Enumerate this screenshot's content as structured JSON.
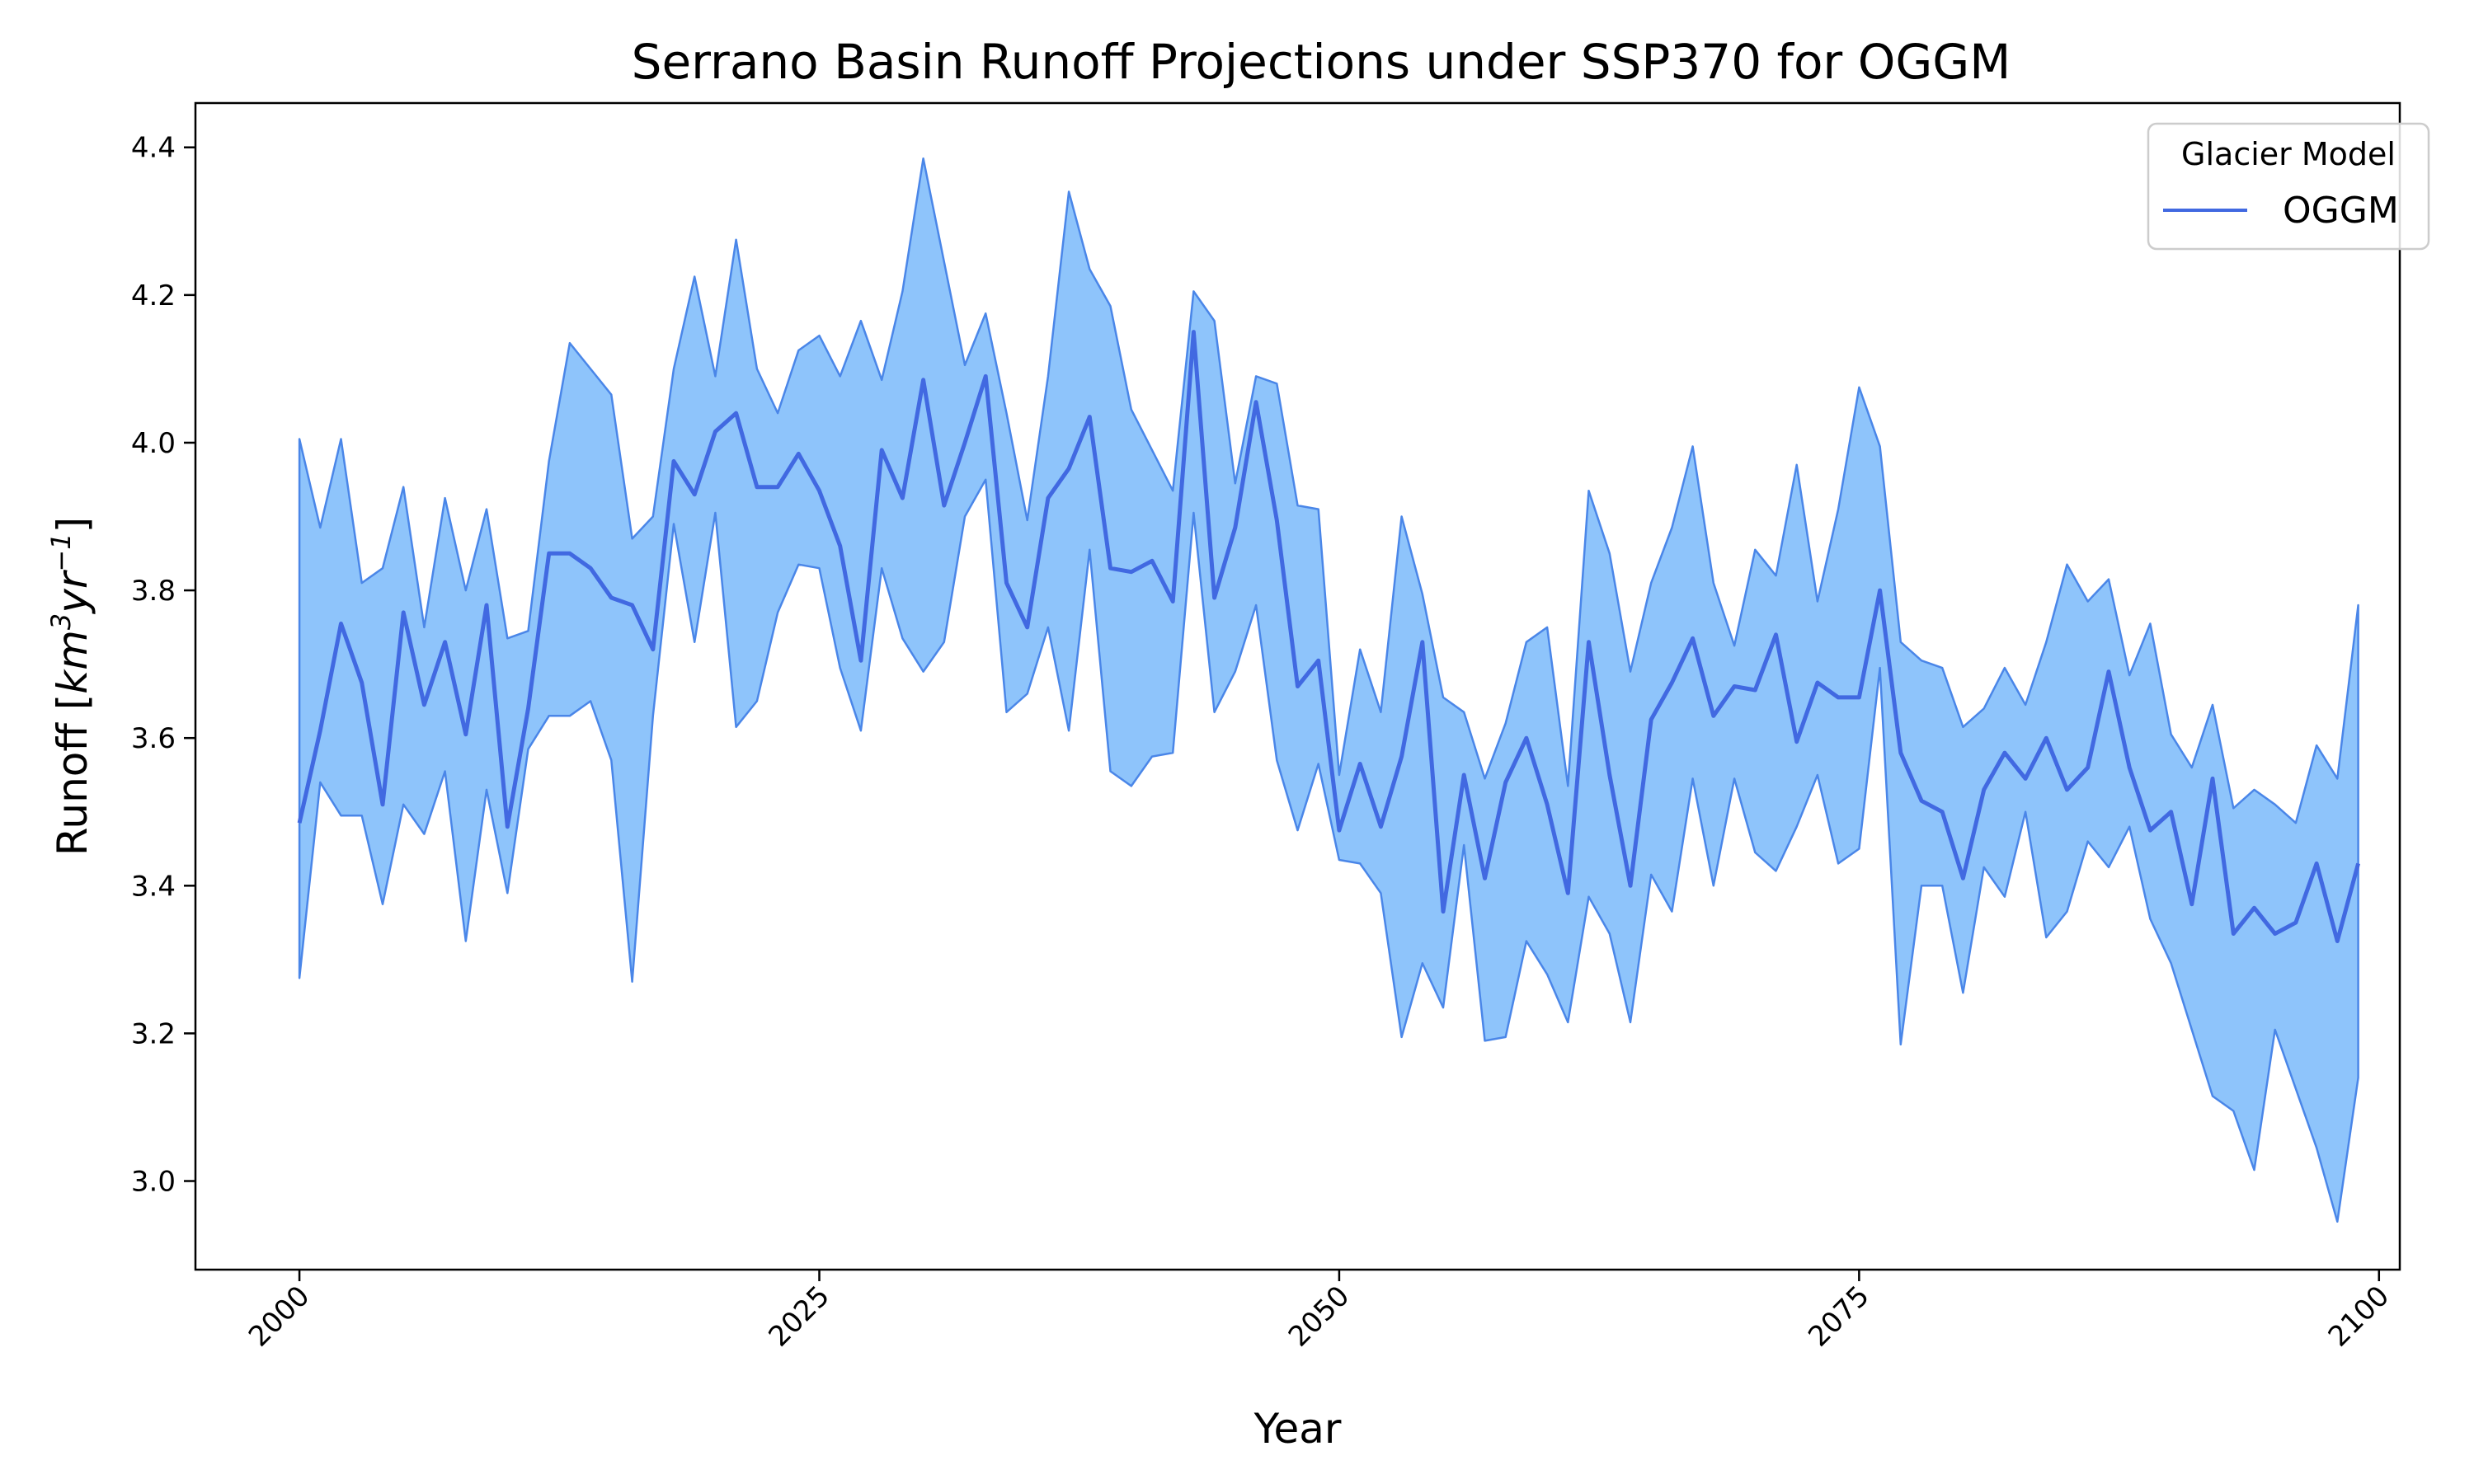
{
  "chart_data": {
    "type": "line",
    "title": "Serrano Basin Runoff Projections under SSP370 for OGGM",
    "xlabel": "Year",
    "ylabel_main": "Runoff [",
    "ylabel_km": "km",
    "ylabel_km_exp": "3",
    "ylabel_yr": "yr",
    "ylabel_yr_exp": "−1",
    "ylabel_close": "]",
    "xlim": [
      1995,
      2101
    ],
    "ylim": [
      2.88,
      4.46
    ],
    "xticks": [
      2000,
      2025,
      2050,
      2075,
      2100
    ],
    "yticks": [
      3.0,
      3.2,
      3.4,
      3.6,
      3.8,
      4.0,
      4.2,
      4.4
    ],
    "ytick_labels": [
      "3.0",
      "3.2",
      "3.4",
      "3.6",
      "3.8",
      "4.0",
      "4.2",
      "4.4"
    ],
    "legend": {
      "title": "Glacier Model",
      "placement": "upper right"
    },
    "colors": {
      "line": "#4169e1",
      "band_fill": "#8ec4fb",
      "band_edge": "#4a86e8"
    },
    "x": [
      2000,
      2001,
      2002,
      2003,
      2004,
      2005,
      2006,
      2007,
      2008,
      2009,
      2010,
      2011,
      2012,
      2013,
      2014,
      2015,
      2016,
      2017,
      2018,
      2019,
      2020,
      2021,
      2022,
      2023,
      2024,
      2025,
      2026,
      2027,
      2028,
      2029,
      2030,
      2031,
      2032,
      2033,
      2034,
      2035,
      2036,
      2037,
      2038,
      2039,
      2040,
      2041,
      2042,
      2043,
      2044,
      2045,
      2046,
      2047,
      2048,
      2049,
      2050,
      2051,
      2052,
      2053,
      2054,
      2055,
      2056,
      2057,
      2058,
      2059,
      2060,
      2061,
      2062,
      2063,
      2064,
      2065,
      2066,
      2067,
      2068,
      2069,
      2070,
      2071,
      2072,
      2073,
      2074,
      2075,
      2076,
      2077,
      2078,
      2079,
      2080,
      2081,
      2082,
      2083,
      2084,
      2085,
      2086,
      2087,
      2088,
      2089,
      2090,
      2091,
      2092,
      2093,
      2094,
      2095,
      2096,
      2097,
      2098,
      2099
    ],
    "series": [
      {
        "name": "OGGM",
        "mean": [
          3.485,
          3.61,
          3.755,
          3.675,
          3.51,
          3.77,
          3.645,
          3.73,
          3.605,
          3.78,
          3.48,
          3.64,
          3.85,
          3.85,
          3.83,
          3.79,
          3.78,
          3.72,
          3.975,
          3.93,
          4.015,
          4.04,
          3.94,
          3.94,
          3.985,
          3.935,
          3.86,
          3.705,
          3.99,
          3.925,
          4.085,
          3.915,
          4.0,
          4.09,
          3.81,
          3.75,
          3.925,
          3.965,
          4.035,
          3.83,
          3.825,
          3.84,
          3.785,
          4.15,
          3.79,
          3.885,
          4.055,
          3.895,
          3.67,
          3.705,
          3.475,
          3.565,
          3.48,
          3.575,
          3.73,
          3.365,
          3.55,
          3.41,
          3.54,
          3.6,
          3.51,
          3.39,
          3.73,
          3.55,
          3.4,
          3.625,
          3.675,
          3.735,
          3.63,
          3.67,
          3.665,
          3.74,
          3.595,
          3.675,
          3.655,
          3.655,
          3.8,
          3.58,
          3.515,
          3.5,
          3.41,
          3.53,
          3.58,
          3.545,
          3.6,
          3.53,
          3.56,
          3.69,
          3.56,
          3.475,
          3.5,
          3.375,
          3.545,
          3.335,
          3.37,
          3.335,
          3.35,
          3.43,
          3.325,
          3.43
        ],
        "upper": [
          4.005,
          3.885,
          4.005,
          3.81,
          3.83,
          3.94,
          3.75,
          3.925,
          3.8,
          3.91,
          3.735,
          3.745,
          3.975,
          4.135,
          4.1,
          4.065,
          3.87,
          3.9,
          4.1,
          4.225,
          4.09,
          4.275,
          4.1,
          4.04,
          4.125,
          4.145,
          4.09,
          4.165,
          4.085,
          4.205,
          4.385,
          4.245,
          4.105,
          4.175,
          4.04,
          3.895,
          4.09,
          4.34,
          4.235,
          4.185,
          4.045,
          3.99,
          3.935,
          4.205,
          4.165,
          3.945,
          4.09,
          4.08,
          3.915,
          3.91,
          3.55,
          3.72,
          3.635,
          3.9,
          3.795,
          3.655,
          3.635,
          3.545,
          3.62,
          3.73,
          3.75,
          3.535,
          3.935,
          3.85,
          3.69,
          3.81,
          3.885,
          3.995,
          3.81,
          3.725,
          3.855,
          3.82,
          3.97,
          3.785,
          3.91,
          4.075,
          3.995,
          3.73,
          3.705,
          3.695,
          3.615,
          3.64,
          3.695,
          3.645,
          3.73,
          3.835,
          3.785,
          3.815,
          3.685,
          3.755,
          3.605,
          3.56,
          3.645,
          3.505,
          3.53,
          3.51,
          3.485,
          3.59,
          3.545,
          3.78
        ],
        "lower": [
          3.275,
          3.54,
          3.495,
          3.495,
          3.375,
          3.51,
          3.47,
          3.555,
          3.325,
          3.53,
          3.39,
          3.585,
          3.63,
          3.63,
          3.65,
          3.57,
          3.27,
          3.63,
          3.89,
          3.73,
          3.905,
          3.615,
          3.65,
          3.77,
          3.835,
          3.83,
          3.695,
          3.61,
          3.83,
          3.735,
          3.69,
          3.73,
          3.9,
          3.95,
          3.635,
          3.66,
          3.75,
          3.61,
          3.855,
          3.555,
          3.535,
          3.575,
          3.58,
          3.905,
          3.635,
          3.69,
          3.78,
          3.57,
          3.475,
          3.565,
          3.435,
          3.43,
          3.39,
          3.195,
          3.295,
          3.235,
          3.455,
          3.19,
          3.195,
          3.325,
          3.28,
          3.215,
          3.385,
          3.335,
          3.215,
          3.415,
          3.365,
          3.545,
          3.4,
          3.545,
          3.445,
          3.42,
          3.48,
          3.55,
          3.43,
          3.45,
          3.695,
          3.185,
          3.4,
          3.4,
          3.255,
          3.425,
          3.385,
          3.5,
          3.33,
          3.365,
          3.46,
          3.425,
          3.48,
          3.355,
          3.295,
          3.205,
          3.115,
          3.095,
          3.015,
          3.205,
          3.125,
          3.045,
          2.945,
          3.14
        ]
      }
    ],
    "grid": false
  }
}
